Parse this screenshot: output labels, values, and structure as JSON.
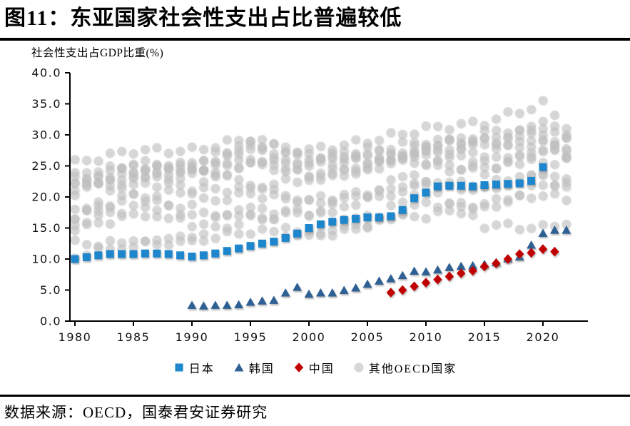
{
  "header": {
    "title": "图11：东亚国家社会性支出占比普遍较低"
  },
  "footer": {
    "source": "数据来源：OECD，国泰君安证券研究"
  },
  "legend": {
    "items": [
      {
        "label": "日本",
        "marker": "square",
        "color": "#1d86cc"
      },
      {
        "label": "韩国",
        "marker": "triangle",
        "color": "#2e6093"
      },
      {
        "label": "中国",
        "marker": "diamond",
        "color": "#c00000"
      },
      {
        "label": "其他OECD国家",
        "marker": "circle",
        "color": "#d3d3d3"
      }
    ]
  },
  "chart_data": {
    "type": "scatter",
    "title": "图11：东亚国家社会性支出占比普遍较低",
    "xlabel": "",
    "ylabel": "社会性支出占GDP比重(%)",
    "ylim": [
      0,
      40
    ],
    "yticks": [
      0,
      5,
      10,
      15,
      20,
      25,
      30,
      35,
      40
    ],
    "ytick_format_decimals": 1,
    "xticks": [
      1980,
      1985,
      1990,
      1995,
      2000,
      2005,
      2010,
      2015,
      2020
    ],
    "x_range_years": [
      1979.5,
      2023.8
    ],
    "grid": false,
    "legend_position": "bottom",
    "series": [
      {
        "name": "日本",
        "marker": "square",
        "color": "#1d86cc",
        "start_year": 1980,
        "values": [
          10.0,
          10.3,
          10.6,
          10.8,
          10.8,
          10.8,
          10.9,
          10.9,
          10.8,
          10.6,
          10.4,
          10.6,
          10.9,
          11.3,
          11.7,
          12.1,
          12.5,
          12.8,
          13.4,
          14.1,
          15.0,
          15.6,
          16.0,
          16.3,
          16.5,
          16.7,
          16.7,
          16.9,
          17.9,
          19.8,
          20.7,
          21.7,
          21.8,
          21.8,
          21.7,
          21.9,
          22.0,
          22.1,
          22.2,
          22.6,
          24.8
        ]
      },
      {
        "name": "韩国",
        "marker": "triangle",
        "color": "#2e6093",
        "start_year": 1990,
        "values": [
          2.6,
          2.5,
          2.6,
          2.6,
          2.7,
          3.1,
          3.3,
          3.4,
          4.6,
          5.5,
          4.4,
          4.6,
          4.6,
          5.0,
          5.4,
          6.0,
          6.5,
          6.9,
          7.4,
          8.1,
          8.0,
          8.3,
          8.7,
          8.9,
          9.0,
          9.2,
          9.5,
          10.1,
          10.4,
          12.3,
          14.2,
          14.7,
          14.7
        ]
      },
      {
        "name": "中国",
        "marker": "diamond",
        "color": "#c00000",
        "start_year": 2007,
        "values": [
          4.6,
          5.0,
          5.6,
          6.2,
          6.7,
          7.2,
          7.7,
          8.1,
          8.8,
          9.3,
          10.0,
          10.8,
          11.0,
          11.6,
          11.2
        ]
      }
    ],
    "other_oecd": {
      "name": "其他OECD国家",
      "marker": "circle",
      "color": "#bdbdbd",
      "year_start": 1980,
      "year_end": 2022,
      "anchor_years": [
        1980,
        1985,
        1990,
        1995,
        2000,
        2005,
        2010,
        2015,
        2020,
        2022
      ],
      "country_tracks": [
        [
          25.5,
          27.5,
          27.5,
          29.5,
          26.5,
          27.0,
          26.5,
          26.0,
          25.5,
          26.0
        ],
        [
          22.5,
          23.5,
          25.5,
          28.5,
          26.0,
          27.5,
          29.0,
          29.0,
          28.0,
          26.5
        ],
        [
          20.5,
          25.0,
          24.5,
          28.5,
          27.5,
          29.0,
          31.0,
          32.0,
          35.0,
          31.5
        ],
        [
          17.5,
          22.5,
          24.0,
          28.0,
          23.0,
          24.5,
          27.5,
          30.5,
          29.5,
          29.0
        ],
        [
          21.5,
          22.5,
          21.5,
          25.5,
          25.5,
          26.5,
          25.5,
          24.5,
          27.5,
          26.5
        ],
        [
          22.0,
          23.5,
          23.5,
          26.0,
          25.5,
          26.0,
          27.5,
          27.0,
          29.5,
          28.0
        ],
        [
          23.0,
          25.5,
          24.5,
          25.5,
          23.5,
          25.0,
          28.5,
          29.0,
          31.5,
          29.5
        ],
        [
          17.0,
          20.0,
          21.0,
          21.5,
          23.0,
          24.5,
          27.5,
          28.5,
          32.0,
          30.0
        ],
        [
          23.5,
          24.5,
          25.0,
          22.0,
          19.0,
          20.5,
          22.0,
          22.0,
          23.5,
          21.5
        ],
        [
          15.5,
          18.5,
          15.5,
          18.0,
          17.5,
          19.5,
          22.5,
          21.0,
          24.0,
          22.0
        ],
        [
          15.0,
          17.0,
          19.0,
          20.5,
          19.5,
          20.5,
          25.0,
          24.0,
          28.5,
          28.0
        ],
        [
          12.5,
          12.5,
          13.0,
          14.5,
          14.0,
          15.5,
          19.0,
          18.5,
          22.0,
          22.5
        ],
        [
          10.5,
          12.5,
          13.5,
          16.5,
          17.5,
          16.5,
          17.0,
          18.5,
          20.5,
          19.5
        ],
        [
          16.5,
          20.5,
          17.0,
          17.5,
          13.5,
          15.5,
          22.0,
          15.5,
          15.0,
          16.0
        ]
      ]
    }
  }
}
